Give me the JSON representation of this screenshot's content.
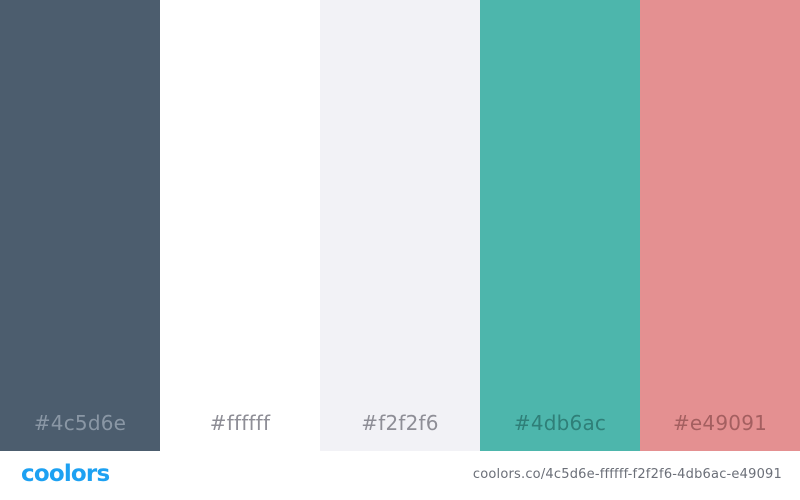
{
  "swatches": [
    {
      "hex": "#4c5d6e",
      "color": "#4c5d6e",
      "label_color": "#8a97a5"
    },
    {
      "hex": "#ffffff",
      "color": "#ffffff",
      "label_color": "#8e8e96"
    },
    {
      "hex": "#f2f2f6",
      "color": "#f2f2f6",
      "label_color": "#8e8e96"
    },
    {
      "hex": "#4db6ac",
      "color": "#4db6ac",
      "label_color": "#2f7f78"
    },
    {
      "hex": "#e49091",
      "color": "#e49091",
      "label_color": "#a45f60"
    }
  ],
  "footer": {
    "logo": "coolors",
    "logo_color": "#1da1f2",
    "url": "coolors.co/4c5d6e-ffffff-f2f2f6-4db6ac-e49091"
  }
}
